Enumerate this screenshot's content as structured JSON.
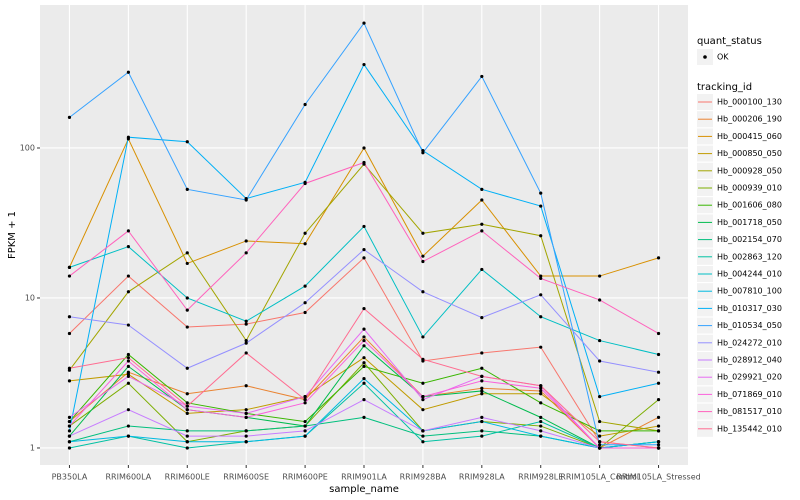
{
  "chart_data": {
    "type": "line",
    "log_scale": true,
    "grid": true,
    "x_label": "sample_name",
    "y_label": "FPKM + 1",
    "points_legend": {
      "title": "quant_status",
      "labels": [
        "OK"
      ],
      "color": "#000000"
    },
    "legend_title": "tracking_id",
    "categories": [
      "PB350LA",
      "RRIM600LA",
      "RRIM600LE",
      "RRIM600SE",
      "RRIM600PE",
      "RRIM901LA",
      "RRIM928BA",
      "RRIM928LA",
      "RRIM928LE",
      "RRIM105LA_Control",
      "RRIM105LA_Stressed"
    ],
    "ylim": [
      0.77,
      898
    ],
    "yticks": [
      1,
      10,
      100
    ],
    "series": [
      {
        "name": "Hb_000100_130",
        "color": "#F8766D",
        "values": [
          5.8,
          14,
          6.4,
          6.7,
          8,
          18.5,
          3.8,
          4.3,
          4.7,
          1.1,
          1.0
        ]
      },
      {
        "name": "Hb_000206_190",
        "color": "#EA8331",
        "values": [
          1.5,
          3.2,
          2.3,
          2.6,
          2.1,
          5.5,
          2.2,
          2.5,
          2.4,
          1.0,
          1.6
        ]
      },
      {
        "name": "Hb_000415_060",
        "color": "#D89000",
        "values": [
          16,
          115,
          17,
          24,
          23,
          100,
          19,
          45,
          14,
          14,
          18.5
        ]
      },
      {
        "name": "Hb_000850_050",
        "color": "#C09B00",
        "values": [
          2.8,
          3.1,
          1.7,
          1.8,
          2.2,
          4.0,
          1.8,
          2.3,
          2.3,
          1.2,
          1.4
        ]
      },
      {
        "name": "Hb_000928_050",
        "color": "#A3A500",
        "values": [
          3.3,
          11,
          20,
          5.2,
          27,
          78,
          27,
          31,
          26,
          1.5,
          1.3
        ]
      },
      {
        "name": "Hb_000939_010",
        "color": "#7CAE00",
        "values": [
          1.4,
          2.7,
          1.1,
          1.3,
          1.4,
          3.7,
          1.3,
          1.5,
          1.4,
          1.0,
          2.1
        ]
      },
      {
        "name": "Hb_001606_080",
        "color": "#39B600",
        "values": [
          1.5,
          4.2,
          2.0,
          1.7,
          1.5,
          3.5,
          2.7,
          3.4,
          2.0,
          1.3,
          1.3
        ]
      },
      {
        "name": "Hb_001718_050",
        "color": "#00BB4E",
        "values": [
          1.2,
          3.5,
          1.8,
          1.6,
          1.4,
          4.8,
          2.2,
          2.4,
          1.6,
          1.0,
          1.1
        ]
      },
      {
        "name": "Hb_002154_070",
        "color": "#00BF7D",
        "values": [
          1.1,
          1.4,
          1.3,
          1.3,
          1.4,
          1.6,
          1.2,
          1.3,
          1.2,
          1.0,
          1.1
        ]
      },
      {
        "name": "Hb_002863_120",
        "color": "#00C1A3",
        "values": [
          1.0,
          1.2,
          1.0,
          1.1,
          1.2,
          2.7,
          1.1,
          1.2,
          1.5,
          1.0,
          1.0
        ]
      },
      {
        "name": "Hb_004244_010",
        "color": "#00BFC4",
        "values": [
          16,
          22,
          10,
          7,
          12,
          30,
          5.5,
          15.5,
          7.5,
          5.2,
          4.2
        ]
      },
      {
        "name": "Hb_007810_100",
        "color": "#00BAE0",
        "values": [
          1.1,
          1.2,
          1.1,
          1.1,
          1.2,
          2.9,
          1.3,
          1.5,
          1.2,
          1.0,
          1.1
        ]
      },
      {
        "name": "Hb_010317_030",
        "color": "#00B0F6",
        "values": [
          1.3,
          118,
          110,
          46,
          59,
          360,
          96,
          53,
          41,
          2.2,
          2.7
        ]
      },
      {
        "name": "Hb_010534_050",
        "color": "#35A2FF",
        "values": [
          160,
          320,
          53,
          45,
          195,
          680,
          93,
          300,
          50,
          1.05,
          1.05
        ]
      },
      {
        "name": "Hb_024272_010",
        "color": "#9590FF",
        "values": [
          7.5,
          6.6,
          3.4,
          5,
          9.3,
          21,
          11,
          7.4,
          10.5,
          3.8,
          3.2
        ]
      },
      {
        "name": "Hb_028912_040",
        "color": "#C77CFF",
        "values": [
          1.2,
          1.8,
          1.2,
          1.2,
          1.3,
          2.1,
          1.3,
          1.6,
          1.3,
          1.0,
          1.0
        ]
      },
      {
        "name": "Hb_029921_020",
        "color": "#E76BF3",
        "values": [
          1.6,
          3.0,
          1.9,
          1.7,
          2.2,
          6.2,
          2.1,
          3.0,
          2.6,
          1.0,
          1.0
        ]
      },
      {
        "name": "Hb_071869_010",
        "color": "#FA62DB",
        "values": [
          1.4,
          3.8,
          1.8,
          1.6,
          2.0,
          5.2,
          2.2,
          2.8,
          2.5,
          1.0,
          1.0
        ]
      },
      {
        "name": "Hb_081517_010",
        "color": "#FF62BC",
        "values": [
          14,
          28,
          8.3,
          20,
          58,
          80,
          17.5,
          28,
          13.5,
          9.7,
          5.8
        ]
      },
      {
        "name": "Hb_135442_010",
        "color": "#FF6C91",
        "values": [
          3.4,
          4.0,
          1.9,
          4.3,
          2.1,
          8.5,
          3.9,
          3.0,
          2.6,
          1.1,
          1.0
        ]
      }
    ]
  }
}
